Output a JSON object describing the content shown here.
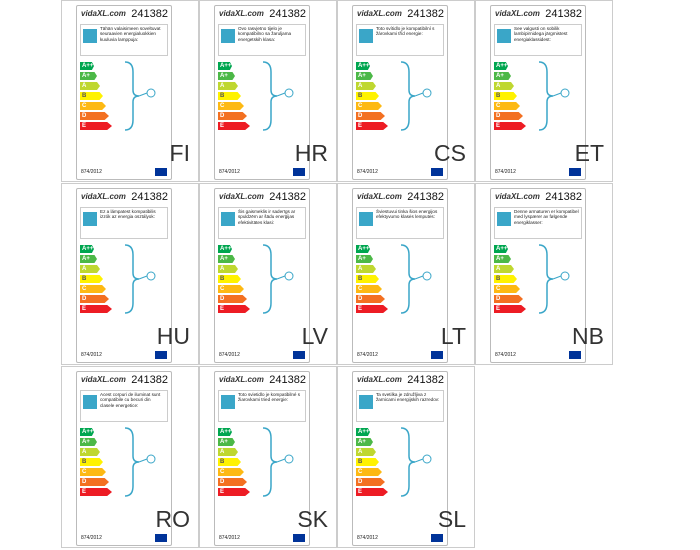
{
  "brand": "vidaXL.com",
  "product_number": "241382",
  "regulation": "874/2012",
  "classes": [
    {
      "label": "A++",
      "color": "#00a650"
    },
    {
      "label": "A+",
      "color": "#4cb847"
    },
    {
      "label": "A",
      "color": "#bfd730"
    },
    {
      "label": "B",
      "color": "#fff200"
    },
    {
      "label": "C",
      "color": "#fdb913"
    },
    {
      "label": "D",
      "color": "#f37021"
    },
    {
      "label": "E",
      "color": "#ed1c24"
    }
  ],
  "labels": [
    {
      "code": "FI",
      "text": "Tähän valaisimeen soveltuvat seuraavien energialuokkien kuuluvia lamppuja:"
    },
    {
      "code": "HR",
      "text": "Ovo rasvjetno tijelo je kompatibilno sa žaruljama energetskih klasa:"
    },
    {
      "code": "CS",
      "text": "Toto svítidlo je kompatibilní s žárovkami tříd energie:"
    },
    {
      "code": "ET",
      "text": "See valgusti on sobilik lambipirnidega järgmistest energiaklassidest:"
    },
    {
      "code": "HU",
      "text": "Ez a lámpatest kompatibilis izzók az energia osztályok:"
    },
    {
      "code": "LV",
      "text": "Šis gaismeklis ir saderīgs ar spuldzēm ar šādu enerģijas efektivitātes klasi:"
    },
    {
      "code": "LT",
      "text": "Šviestuvui tinka šios energijos efektyvumo klasės lemputės:"
    },
    {
      "code": "NB",
      "text": "Denne armaturen er kompatibel med lyspærer av følgende energiklasser:"
    },
    {
      "code": "RO",
      "text": "Acest corpuri de iluminat sunt compatibile cu becuri din clasele energetice:"
    },
    {
      "code": "SK",
      "text": "Toto svietidlo je kompatibilné s žiarovkami tried energie:"
    },
    {
      "code": "SL",
      "text": "Ta svetilka je združljiva z žarnicami energijskih razredov:"
    }
  ]
}
